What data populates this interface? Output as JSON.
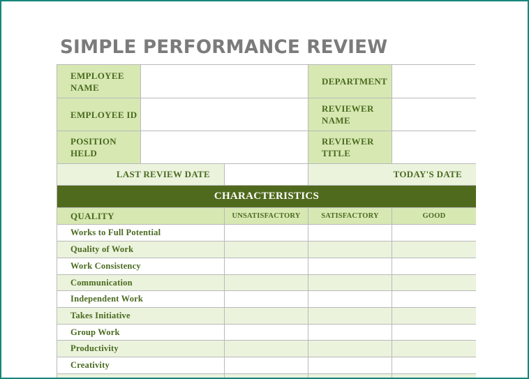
{
  "form": {
    "title": "SIMPLE PERFORMANCE REVIEW",
    "employee_name_label": [
      "EMPLOYEE",
      "NAME"
    ],
    "employee_id_label": "EMPLOYEE ID",
    "position_label": [
      "POSITION",
      "HELD"
    ],
    "department_label": "DEPARTMENT",
    "reviewer_name_label": [
      "REVIEWER",
      "NAME"
    ],
    "reviewer_title_label": [
      "REVIEWER",
      "TITLE"
    ],
    "last_review_label": "LAST REVIEW DATE",
    "todays_date_label": "TODAY'S DATE"
  },
  "characteristics": {
    "heading": "CHARACTERISTICS",
    "columns": [
      "QUALITY",
      "UNSATISFACTORY",
      "SATISFACTORY",
      "GOOD"
    ],
    "qualities": [
      "Works to Full Potential",
      "Quality of Work",
      "Work Consistency",
      "Communication",
      "Independent Work",
      "Takes Initiative",
      "Group Work",
      "Productivity",
      "Creativity"
    ]
  },
  "colors": {
    "frame": "#16857a",
    "label_fill": "#d7e8b3",
    "light_fill": "#ebf3dd",
    "band_fill": "#4f6a1d",
    "label_text": "#4a6a1f",
    "title_text": "#7b7b7b"
  }
}
